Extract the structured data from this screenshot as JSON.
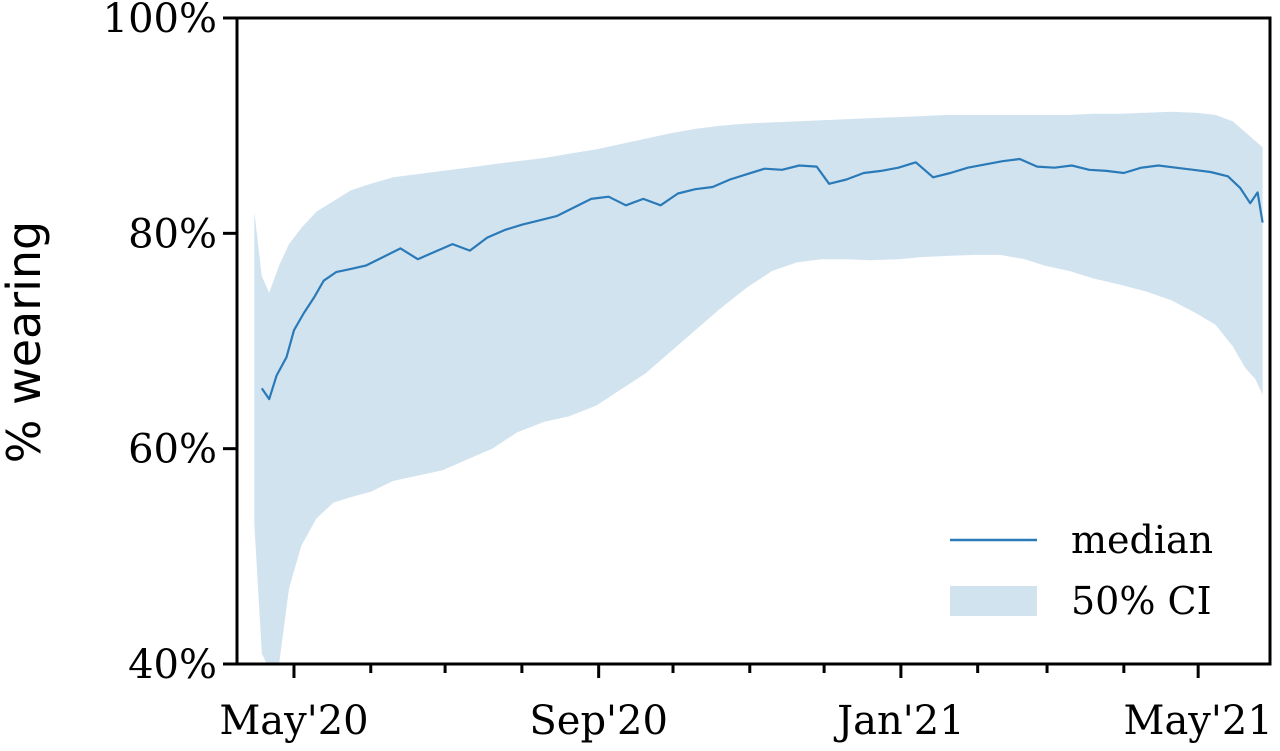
{
  "chart_data": {
    "type": "line",
    "title": "",
    "xlabel": "",
    "ylabel": "% wearing",
    "ylim": [
      40,
      100
    ],
    "xlim": [
      "2020-04-08",
      "2021-05-30"
    ],
    "y_ticks": [
      {
        "value": 40,
        "label": "40%"
      },
      {
        "value": 60,
        "label": "60%"
      },
      {
        "value": 80,
        "label": "80%"
      },
      {
        "value": 100,
        "label": "100%"
      }
    ],
    "x_ticks": [
      {
        "date": "2020-05-01",
        "label": "May'20"
      },
      {
        "date": "2020-06-01",
        "label": ""
      },
      {
        "date": "2020-07-01",
        "label": ""
      },
      {
        "date": "2020-08-01",
        "label": ""
      },
      {
        "date": "2020-09-01",
        "label": "Sep'20"
      },
      {
        "date": "2020-10-01",
        "label": ""
      },
      {
        "date": "2020-11-01",
        "label": ""
      },
      {
        "date": "2020-12-01",
        "label": ""
      },
      {
        "date": "2021-01-01",
        "label": "Jan'21"
      },
      {
        "date": "2021-02-01",
        "label": ""
      },
      {
        "date": "2021-03-01",
        "label": ""
      },
      {
        "date": "2021-04-01",
        "label": ""
      },
      {
        "date": "2021-05-01",
        "label": "May'21"
      }
    ],
    "grid": false,
    "legend_position": "bottom-right",
    "series": [
      {
        "name": "median",
        "kind": "line",
        "color": "#2a7ab8",
        "points": [
          [
            "2020-04-18",
            65.6
          ],
          [
            "2020-04-21",
            64.6
          ],
          [
            "2020-04-24",
            66.8
          ],
          [
            "2020-04-28",
            68.5
          ],
          [
            "2020-05-01",
            71.0
          ],
          [
            "2020-05-05",
            72.6
          ],
          [
            "2020-05-09",
            74.0
          ],
          [
            "2020-05-13",
            75.6
          ],
          [
            "2020-05-18",
            76.4
          ],
          [
            "2020-05-24",
            76.7
          ],
          [
            "2020-05-30",
            77.0
          ],
          [
            "2020-06-06",
            77.8
          ],
          [
            "2020-06-13",
            78.6
          ],
          [
            "2020-06-20",
            77.6
          ],
          [
            "2020-06-27",
            78.3
          ],
          [
            "2020-07-04",
            79.0
          ],
          [
            "2020-07-11",
            78.4
          ],
          [
            "2020-07-18",
            79.6
          ],
          [
            "2020-07-25",
            80.3
          ],
          [
            "2020-08-01",
            80.8
          ],
          [
            "2020-08-08",
            81.2
          ],
          [
            "2020-08-15",
            81.6
          ],
          [
            "2020-08-22",
            82.4
          ],
          [
            "2020-08-29",
            83.2
          ],
          [
            "2020-09-05",
            83.4
          ],
          [
            "2020-09-12",
            82.6
          ],
          [
            "2020-09-19",
            83.2
          ],
          [
            "2020-09-26",
            82.6
          ],
          [
            "2020-10-03",
            83.7
          ],
          [
            "2020-10-10",
            84.1
          ],
          [
            "2020-10-17",
            84.3
          ],
          [
            "2020-10-24",
            85.0
          ],
          [
            "2020-10-31",
            85.5
          ],
          [
            "2020-11-07",
            86.0
          ],
          [
            "2020-11-14",
            85.9
          ],
          [
            "2020-11-21",
            86.3
          ],
          [
            "2020-11-28",
            86.2
          ],
          [
            "2020-12-03",
            84.6
          ],
          [
            "2020-12-10",
            85.0
          ],
          [
            "2020-12-17",
            85.6
          ],
          [
            "2020-12-24",
            85.8
          ],
          [
            "2020-12-31",
            86.1
          ],
          [
            "2021-01-07",
            86.6
          ],
          [
            "2021-01-14",
            85.2
          ],
          [
            "2021-01-21",
            85.6
          ],
          [
            "2021-01-28",
            86.1
          ],
          [
            "2021-02-04",
            86.4
          ],
          [
            "2021-02-11",
            86.7
          ],
          [
            "2021-02-18",
            86.9
          ],
          [
            "2021-02-25",
            86.2
          ],
          [
            "2021-03-04",
            86.1
          ],
          [
            "2021-03-11",
            86.3
          ],
          [
            "2021-03-18",
            85.9
          ],
          [
            "2021-03-25",
            85.8
          ],
          [
            "2021-04-01",
            85.6
          ],
          [
            "2021-04-08",
            86.1
          ],
          [
            "2021-04-15",
            86.3
          ],
          [
            "2021-04-22",
            86.1
          ],
          [
            "2021-04-29",
            85.9
          ],
          [
            "2021-05-06",
            85.7
          ],
          [
            "2021-05-13",
            85.3
          ],
          [
            "2021-05-18",
            84.2
          ],
          [
            "2021-05-22",
            82.8
          ],
          [
            "2021-05-25",
            83.8
          ],
          [
            "2021-05-27",
            81.0
          ]
        ]
      },
      {
        "name": "50% CI",
        "kind": "band",
        "color": "#d2e3f0",
        "points": [
          [
            "2020-04-15",
            53.0,
            82.0
          ],
          [
            "2020-04-18",
            41.0,
            76.0
          ],
          [
            "2020-04-21",
            39.5,
            74.5
          ],
          [
            "2020-04-25",
            40.0,
            77.0
          ],
          [
            "2020-04-29",
            47.0,
            79.0
          ],
          [
            "2020-05-04",
            51.0,
            80.5
          ],
          [
            "2020-05-10",
            53.5,
            82.0
          ],
          [
            "2020-05-17",
            55.0,
            83.0
          ],
          [
            "2020-05-24",
            55.5,
            84.0
          ],
          [
            "2020-06-01",
            56.0,
            84.6
          ],
          [
            "2020-06-10",
            57.0,
            85.2
          ],
          [
            "2020-06-20",
            57.5,
            85.5
          ],
          [
            "2020-06-30",
            58.0,
            85.8
          ],
          [
            "2020-07-10",
            59.0,
            86.1
          ],
          [
            "2020-07-20",
            60.0,
            86.4
          ],
          [
            "2020-07-30",
            61.5,
            86.7
          ],
          [
            "2020-08-10",
            62.5,
            87.0
          ],
          [
            "2020-08-20",
            63.0,
            87.4
          ],
          [
            "2020-08-31",
            64.0,
            87.8
          ],
          [
            "2020-09-10",
            65.5,
            88.3
          ],
          [
            "2020-09-20",
            67.0,
            88.8
          ],
          [
            "2020-09-30",
            69.0,
            89.3
          ],
          [
            "2020-10-10",
            71.0,
            89.7
          ],
          [
            "2020-10-20",
            73.0,
            90.0
          ],
          [
            "2020-10-31",
            75.0,
            90.2
          ],
          [
            "2020-11-10",
            76.5,
            90.3
          ],
          [
            "2020-11-20",
            77.3,
            90.4
          ],
          [
            "2020-11-30",
            77.6,
            90.5
          ],
          [
            "2020-12-10",
            77.6,
            90.6
          ],
          [
            "2020-12-20",
            77.5,
            90.7
          ],
          [
            "2020-12-31",
            77.6,
            90.8
          ],
          [
            "2021-01-10",
            77.8,
            90.9
          ],
          [
            "2021-01-20",
            77.9,
            91.0
          ],
          [
            "2021-01-31",
            78.0,
            91.0
          ],
          [
            "2021-02-10",
            78.0,
            91.0
          ],
          [
            "2021-02-20",
            77.6,
            91.0
          ],
          [
            "2021-02-28",
            77.0,
            91.0
          ],
          [
            "2021-03-10",
            76.5,
            91.0
          ],
          [
            "2021-03-20",
            75.8,
            91.1
          ],
          [
            "2021-03-31",
            75.2,
            91.1
          ],
          [
            "2021-04-10",
            74.6,
            91.2
          ],
          [
            "2021-04-20",
            73.8,
            91.3
          ],
          [
            "2021-04-30",
            72.6,
            91.2
          ],
          [
            "2021-05-08",
            71.5,
            91.0
          ],
          [
            "2021-05-15",
            69.5,
            90.4
          ],
          [
            "2021-05-20",
            67.5,
            89.4
          ],
          [
            "2021-05-24",
            66.5,
            88.6
          ],
          [
            "2021-05-27",
            65.0,
            88.0
          ]
        ]
      }
    ]
  }
}
